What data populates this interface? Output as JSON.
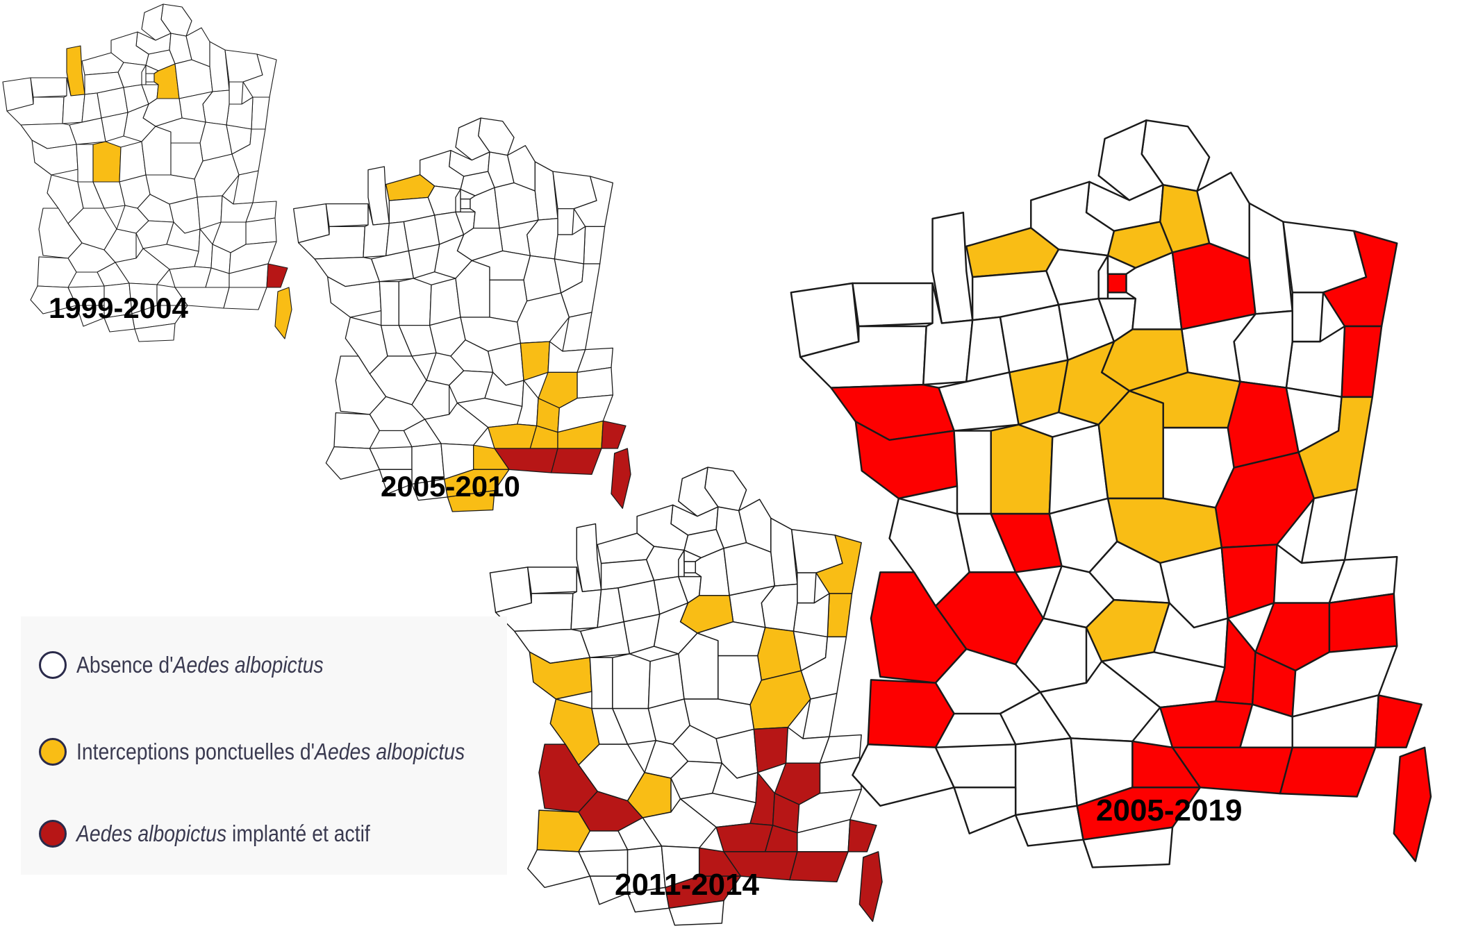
{
  "colors": {
    "absence": "#ffffff",
    "interception": "#f9bd15",
    "implanted_small": "#b71616",
    "implanted_large": "#fd0000",
    "border": "#1a1a1a"
  },
  "maps": [
    {
      "period": "1999-2004",
      "fill_color_implanted": "#b71616",
      "departments_interception": [
        "Manche (approx.)",
        "Seine-et-Marne (approx.)",
        "Vienne (approx.)",
        "Corse-du-Sud (approx.)"
      ],
      "departments_implanted": [
        "Alpes-Maritimes"
      ]
    },
    {
      "period": "2005-2010",
      "fill_color_implanted": "#b71616",
      "departments_interception": [
        "Calvados",
        "Rhône",
        "Isère",
        "Drôme",
        "Vaucluse",
        "Gard",
        "Hérault",
        "Aude",
        "Pyrénées-Orientales",
        "Alpes-de-Haute-Provence"
      ],
      "departments_implanted": [
        "Alpes-Maritimes",
        "Var",
        "Bouches-du-Rhône",
        "Corse"
      ]
    },
    {
      "period": "2011-2014",
      "fill_color_implanted": "#b71616",
      "departments_interception": [
        "Bas-Rhin",
        "Haut-Rhin",
        "Loiret",
        "Côte-d'Or",
        "Vendée",
        "Charente-Maritime",
        "Landes",
        "Saône-et-Loire",
        "Lot"
      ],
      "departments_implanted": [
        "Gironde",
        "Lot-et-Garonne",
        "Rhône",
        "Isère",
        "Drôme",
        "Ardèche",
        "Gard",
        "Hérault",
        "Aude",
        "Vaucluse",
        "Bouches-du-Rhône",
        "Var",
        "Alpes-Maritimes",
        "Corse"
      ]
    },
    {
      "period": "2005-2019",
      "fill_color_implanted": "#fd0000",
      "departments_interception": [
        "Calvados",
        "Aisne",
        "Oise",
        "Loiret",
        "Yonne",
        "Loir-et-Cher",
        "Indre-et-Loire",
        "Vienne",
        "Cher",
        "Allier",
        "Doubs",
        "Cantal"
      ],
      "departments_implanted": [
        "Vendée",
        "Loire-Atlantique",
        "Gironde",
        "Landes",
        "Dordogne",
        "Haute-Vienne",
        "Marne",
        "Bas-Rhin",
        "Haut-Rhin",
        "Côte-d'Or",
        "Saône-et-Loire",
        "Rhône",
        "Isère",
        "Savoie",
        "Drôme",
        "Ardèche",
        "Gard",
        "Hérault",
        "Aude",
        "Bouches-du-Rhône",
        "Var",
        "Alpes-Maritimes",
        "Corse",
        "Paris"
      ]
    }
  ],
  "legend": {
    "items": [
      {
        "pre": "Absence d'",
        "italic": "Aedes albopictus",
        "post": ""
      },
      {
        "pre": "Interceptions ponctuelles d'",
        "italic": "Aedes albopictus",
        "post": ""
      },
      {
        "pre": "",
        "italic": "Aedes albopictus",
        "post": " implanté et actif"
      }
    ]
  }
}
